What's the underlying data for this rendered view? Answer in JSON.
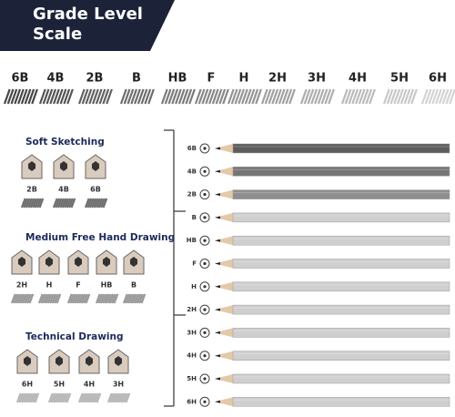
{
  "header": {
    "title_line1": "Grade Level",
    "title_line2": "Scale"
  },
  "scale": [
    "6B",
    "4B",
    "2B",
    "B",
    "HB",
    "F",
    "H",
    "2H",
    "3H",
    "4H",
    "5H",
    "6H"
  ],
  "groups": [
    {
      "title": "Soft Sketching",
      "pencils": [
        "2B",
        "4B",
        "6B"
      ]
    },
    {
      "title": "Medium Free Hand Drawing",
      "pencils": [
        "2H",
        "H",
        "F",
        "HB",
        "B"
      ]
    },
    {
      "title": "Technical Drawing",
      "pencils": [
        "6H",
        "5H",
        "4H",
        "3H"
      ]
    }
  ],
  "pencils": [
    "6B",
    "4B",
    "2B",
    "B",
    "HB",
    "F",
    "H",
    "2H",
    "3H",
    "4H",
    "5H",
    "6H"
  ]
}
